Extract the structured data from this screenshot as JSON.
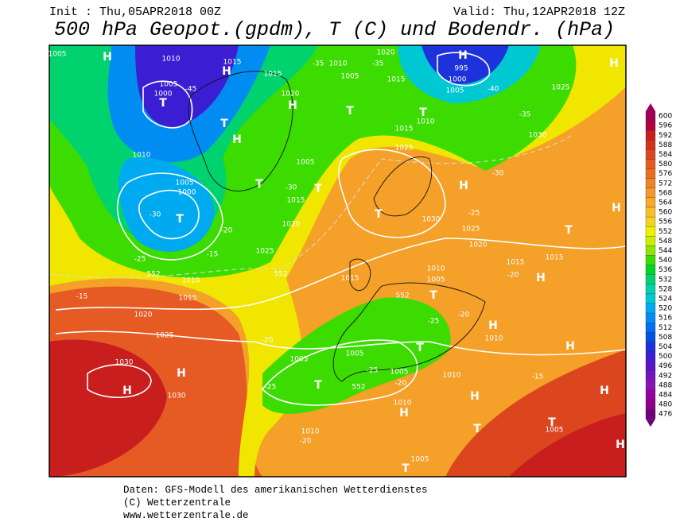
{
  "header": {
    "init": "Init : Thu,05APR2018 00Z",
    "valid": "Valid: Thu,12APR2018 12Z",
    "title": "500 hPa Geopot.(gpdm), T (C) und Bodendr. (hPa)"
  },
  "colorbar": {
    "ticks": [
      600,
      596,
      592,
      588,
      584,
      580,
      576,
      572,
      568,
      564,
      560,
      556,
      552,
      548,
      544,
      540,
      536,
      532,
      528,
      524,
      520,
      516,
      512,
      508,
      504,
      500,
      496,
      492,
      488,
      484,
      480,
      476
    ],
    "colors": [
      "#a0005a",
      "#b4003c",
      "#c81e1e",
      "#d23219",
      "#dc461e",
      "#e65a23",
      "#eb6e1e",
      "#f08228",
      "#f59628",
      "#faaa28",
      "#fabe28",
      "#f5d21e",
      "#f0f000",
      "#c8f000",
      "#8ce600",
      "#3cdc00",
      "#00d228",
      "#00d26e",
      "#00d2aa",
      "#00c8d2",
      "#00aaf0",
      "#008cf0",
      "#006ef0",
      "#0050e6",
      "#1e32dc",
      "#3c1ed2",
      "#5a14c8",
      "#7814be",
      "#8c14b4",
      "#9600a0",
      "#8c008c",
      "#6e0078"
    ]
  },
  "map": {
    "labels": [
      "H",
      "1005",
      "1010",
      "1015",
      "H",
      "-35",
      "1010",
      "1015",
      "1005",
      "1020",
      "-35",
      "1015",
      "995",
      "H",
      "1000",
      "1005",
      "-40",
      "1025",
      "H",
      "T",
      "1005",
      "1000",
      "-45",
      "1020",
      "H",
      "T",
      "T",
      "-35",
      "1010",
      "1015",
      "1030",
      "T",
      "H",
      "1010",
      "1005",
      "1025",
      "T",
      "-30",
      "T",
      "1005",
      "1000",
      "T",
      "-30",
      "1015",
      "H",
      "-30",
      "T",
      "1030",
      "-25",
      "1025",
      "1020",
      "-20",
      "1020",
      "T",
      "H",
      "1025",
      "-15",
      "-25",
      "552",
      "552",
      "1010",
      "1015",
      "1010",
      "1005",
      "1015",
      "1015",
      "-20",
      "H",
      "1015",
      "-15",
      "552",
      "T",
      "1020",
      "-25",
      "-20",
      "H",
      "1025",
      "1010",
      "H",
      "-20",
      "1005",
      "T",
      "1030",
      "H",
      "H",
      "1030",
      "1005",
      "-25",
      "1005",
      "-20",
      "552",
      "T",
      "1010",
      "-15",
      "H",
      "H",
      "1010",
      "H",
      "T",
      "T",
      "1005",
      "1010",
      "-20",
      "1005",
      "T",
      "H",
      "-25"
    ]
  },
  "footer": {
    "lines": [
      "Daten: GFS-Modell des amerikanischen Wetterdienstes",
      "(C) Wetterzentrale",
      "www.wetterzentrale.de"
    ]
  }
}
